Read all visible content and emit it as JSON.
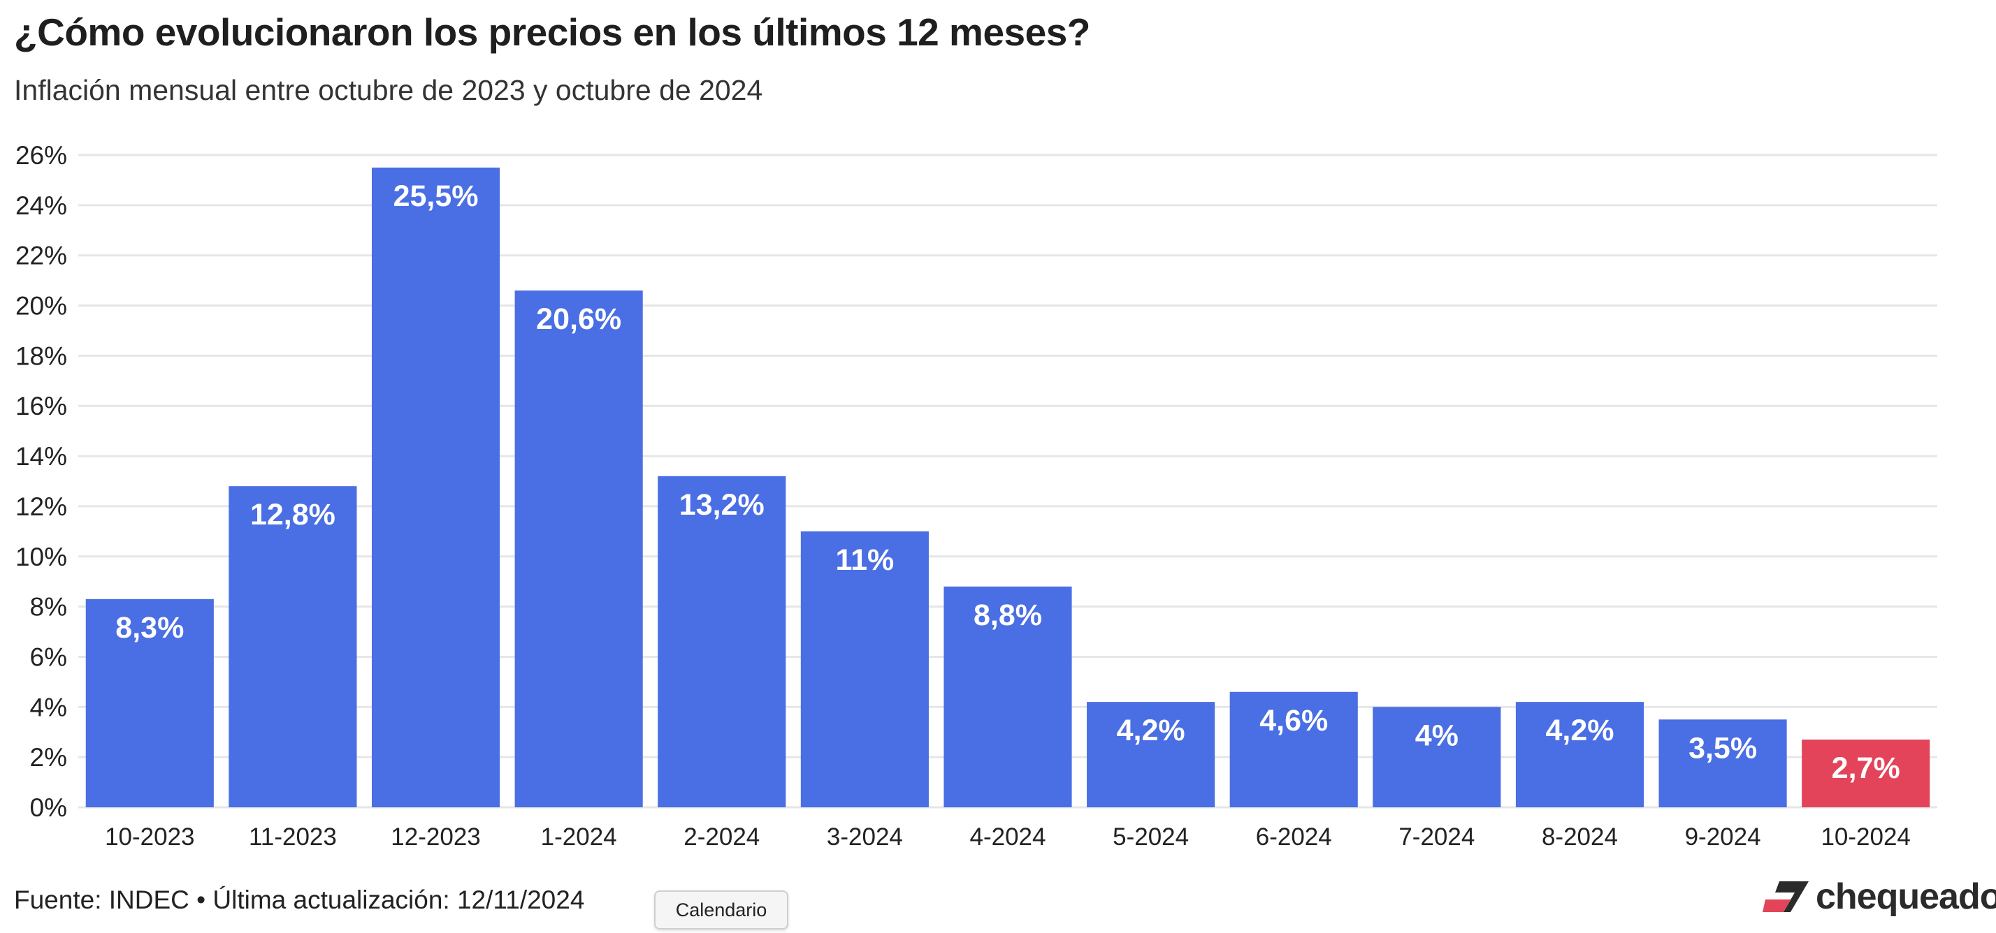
{
  "colors": {
    "bar": "#4a6ee3",
    "highlight": "#e3445a",
    "grid": "#e6e6e6",
    "label": "#ffffff",
    "tick": "#222222"
  },
  "chart_data": {
    "type": "bar",
    "title": "¿Cómo evolucionaron los precios en los últimos 12 meses?",
    "subtitle": "Inflación mensual entre octubre de 2023 y octubre de 2024",
    "xlabel": "",
    "ylabel": "",
    "ylim": [
      0,
      26
    ],
    "yticks": [
      0,
      2,
      4,
      6,
      8,
      10,
      12,
      14,
      16,
      18,
      20,
      22,
      24,
      26
    ],
    "ytick_labels": [
      "0%",
      "2%",
      "4%",
      "6%",
      "8%",
      "10%",
      "12%",
      "14%",
      "16%",
      "18%",
      "20%",
      "22%",
      "24%",
      "26%"
    ],
    "grid": true,
    "categories": [
      "10-2023",
      "11-2023",
      "12-2023",
      "1-2024",
      "2-2024",
      "3-2024",
      "4-2024",
      "5-2024",
      "6-2024",
      "7-2024",
      "8-2024",
      "9-2024",
      "10-2024"
    ],
    "values": [
      8.3,
      12.8,
      25.5,
      20.6,
      13.2,
      11,
      8.8,
      4.2,
      4.6,
      4,
      4.2,
      3.5,
      2.7
    ],
    "data_labels": [
      "8,3%",
      "12,8%",
      "25,5%",
      "20,6%",
      "13,2%",
      "11%",
      "8,8%",
      "4,2%",
      "4,6%",
      "4%",
      "4,2%",
      "3,5%",
      "2,7%"
    ],
    "highlight_index": 12
  },
  "footer": {
    "source": "Fuente: INDEC • Última actualización: 12/11/2024",
    "calendar_button": "Calendario",
    "logo": "chequeado"
  }
}
